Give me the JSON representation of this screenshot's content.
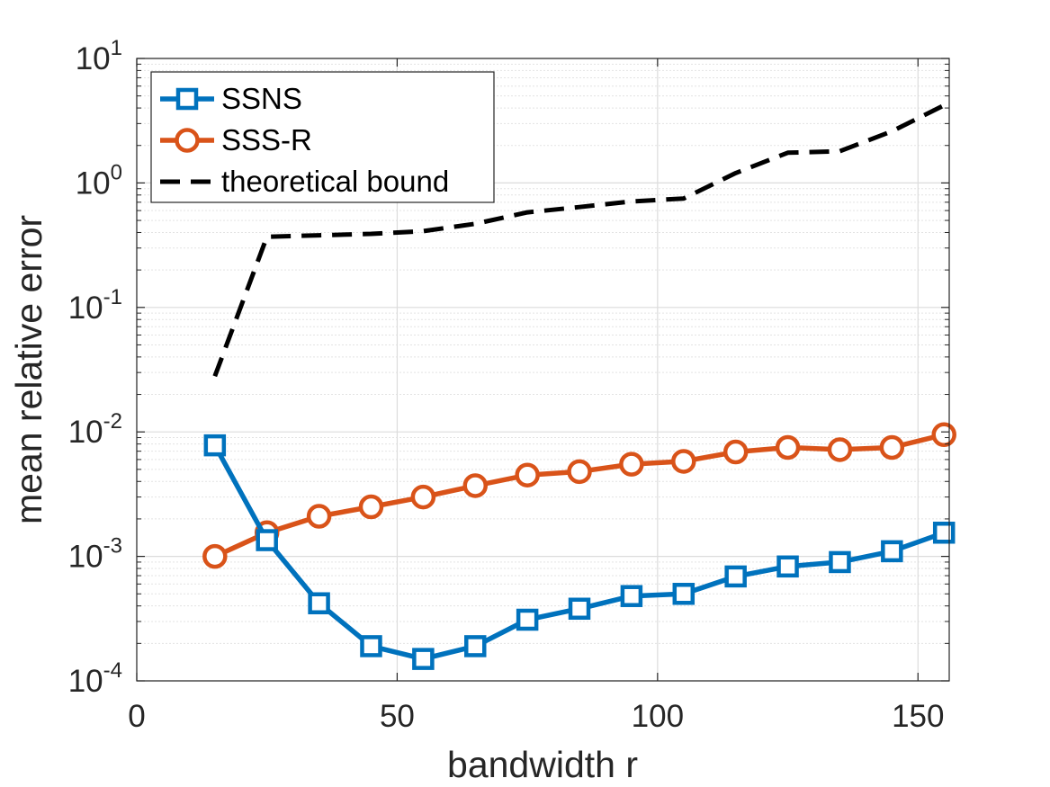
{
  "chart_data": {
    "type": "line",
    "x_scale": "linear",
    "y_scale": "log",
    "xlabel": "bandwidth r",
    "ylabel": "mean relative error",
    "xlim": [
      0,
      156
    ],
    "ylim": [
      0.0001,
      10
    ],
    "grid": true,
    "x_ticks": [
      0,
      50,
      100,
      150
    ],
    "x_tick_labels": [
      "0",
      "50",
      "100",
      "150"
    ],
    "y_ticks": [
      0.0001,
      0.001,
      0.01,
      0.1,
      1,
      10
    ],
    "y_tick_labels": [
      {
        "base": "10",
        "exp": "-4"
      },
      {
        "base": "10",
        "exp": "-3"
      },
      {
        "base": "10",
        "exp": "-2"
      },
      {
        "base": "10",
        "exp": "-1"
      },
      {
        "base": "10",
        "exp": "0"
      },
      {
        "base": "10",
        "exp": "1"
      }
    ],
    "legend_position": "top-left",
    "x": [
      15,
      25,
      35,
      45,
      55,
      65,
      75,
      85,
      95,
      105,
      115,
      125,
      135,
      145,
      155
    ],
    "series": [
      {
        "name": "SSNS",
        "color": "#0072BD",
        "marker": "square",
        "line_style": "solid",
        "values": [
          0.0078,
          0.00135,
          0.00042,
          0.00019,
          0.00015,
          0.00019,
          0.00031,
          0.00038,
          0.00048,
          0.0005,
          0.00069,
          0.00083,
          0.0009,
          0.0011,
          0.00155
        ]
      },
      {
        "name": "SSS-R",
        "color": "#D95319",
        "marker": "circle",
        "line_style": "solid",
        "values": [
          0.001,
          0.00155,
          0.0021,
          0.0025,
          0.003,
          0.0037,
          0.0045,
          0.0048,
          0.0055,
          0.0058,
          0.0069,
          0.0075,
          0.0072,
          0.0075,
          0.0095
        ]
      },
      {
        "name": "theoretical bound",
        "color": "#000000",
        "marker": "none",
        "line_style": "dashed",
        "values": [
          0.028,
          0.37,
          0.38,
          0.39,
          0.41,
          0.47,
          0.58,
          0.64,
          0.71,
          0.75,
          1.2,
          1.75,
          1.8,
          2.6,
          4.2
        ]
      }
    ]
  }
}
